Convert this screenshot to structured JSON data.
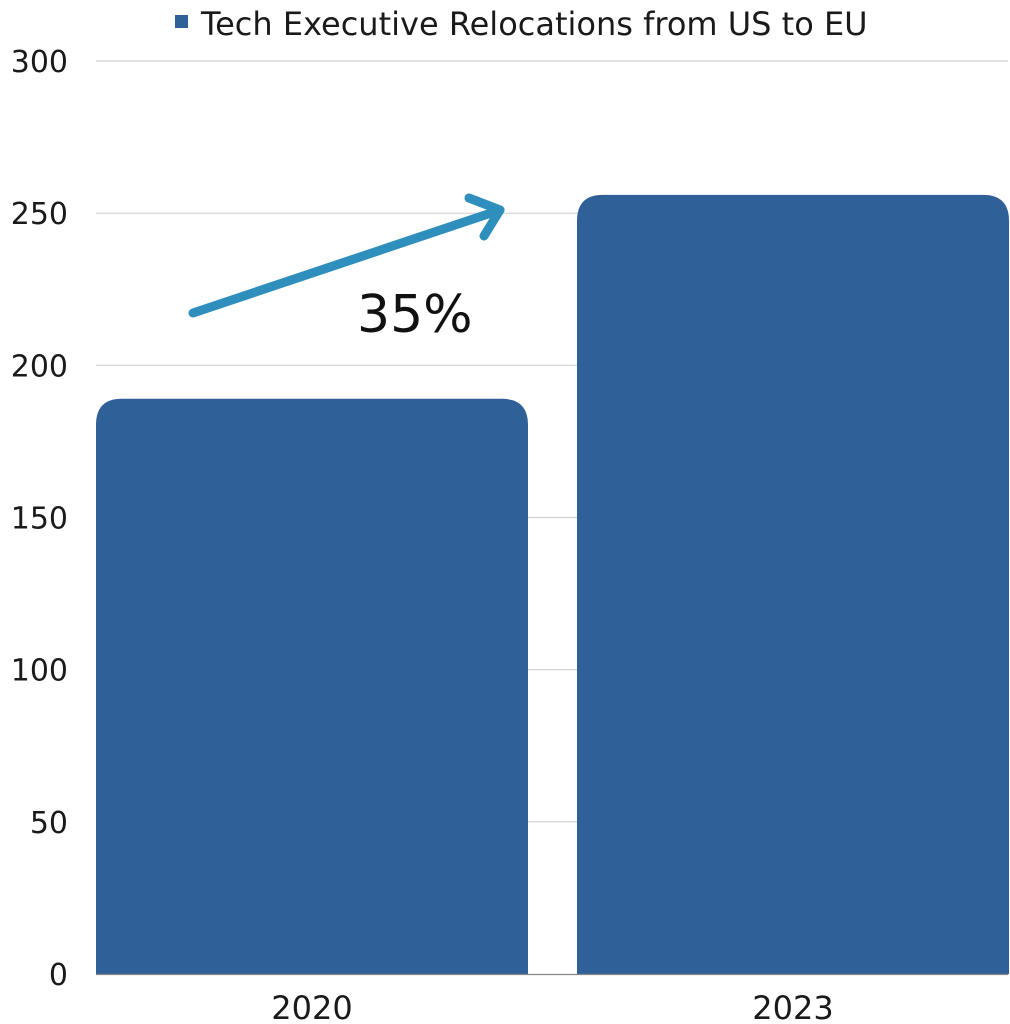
{
  "chart_data": {
    "type": "bar",
    "title": "",
    "xlabel": "",
    "ylabel": "",
    "categories": [
      "2020",
      "2023"
    ],
    "series": [
      {
        "name": "Tech Executive Relocations from US to EU",
        "values": [
          189,
          256
        ]
      }
    ],
    "ylim": [
      0,
      300
    ],
    "yticks": [
      "0",
      "50",
      "100",
      "150",
      "200",
      "250",
      "300"
    ],
    "ytick_values": [
      0,
      50,
      100,
      150,
      200,
      250,
      300
    ],
    "grid": true,
    "legend_position": "top",
    "annotation": {
      "text": "35%",
      "arrow": "up-right"
    }
  },
  "colors": {
    "bar": "#306098",
    "arrow": "#2e8fbd",
    "grid": "#d0d0d0",
    "axis": "#888888"
  }
}
